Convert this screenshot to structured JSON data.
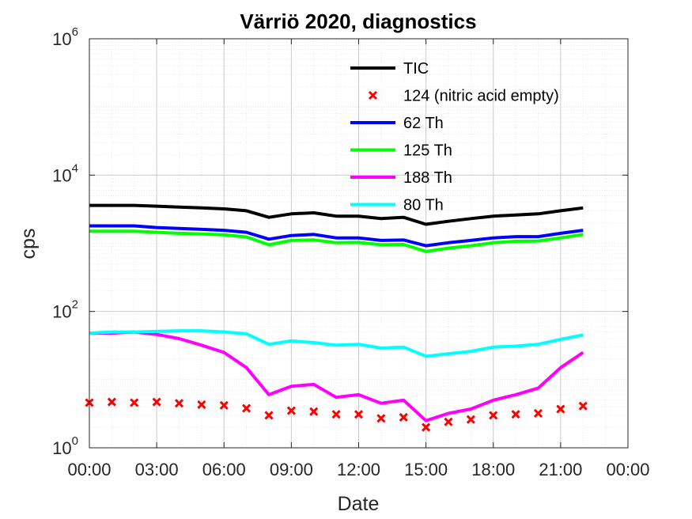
{
  "chart_data": {
    "type": "line",
    "title": "Värriö 2020, diagnostics",
    "xlabel": "Date",
    "ylabel": "cps",
    "yscale": "log",
    "ylim": [
      1,
      1000000
    ],
    "xlim": [
      "00:00",
      "00:00 (next day)"
    ],
    "grid": true,
    "legend_position": "top-right",
    "x_tick_labels": [
      "00:00",
      "03:00",
      "06:00",
      "09:00",
      "12:00",
      "15:00",
      "18:00",
      "21:00",
      "00:00"
    ],
    "y_tick_labels": [
      {
        "base": "10",
        "exp": "0"
      },
      {
        "base": "10",
        "exp": "2"
      },
      {
        "base": "10",
        "exp": "4"
      },
      {
        "base": "10",
        "exp": "6"
      }
    ],
    "x_hours": [
      0,
      1,
      2,
      3,
      4,
      5,
      6,
      7,
      8,
      9,
      10,
      11,
      12,
      13,
      14,
      15,
      16,
      17,
      18,
      19,
      20,
      21,
      22
    ],
    "series": [
      {
        "name": "TIC",
        "style": "line",
        "color": "#000000",
        "values": [
          3600,
          3600,
          3600,
          3500,
          3400,
          3300,
          3200,
          3000,
          2400,
          2700,
          2800,
          2500,
          2500,
          2300,
          2400,
          1900,
          2100,
          2300,
          2500,
          2600,
          2700,
          3000,
          3300
        ]
      },
      {
        "name": "124 (nitric acid empty)",
        "style": "marker",
        "color": "#ff0000",
        "values": [
          4.6,
          4.7,
          4.6,
          4.7,
          4.5,
          4.3,
          4.2,
          3.8,
          3.0,
          3.5,
          3.4,
          3.1,
          3.1,
          2.7,
          2.8,
          2.0,
          2.4,
          2.6,
          3.0,
          3.1,
          3.2,
          3.7,
          4.1
        ]
      },
      {
        "name": "62 Th",
        "style": "line",
        "color": "#0000ff",
        "values": [
          1800,
          1800,
          1800,
          1700,
          1650,
          1600,
          1550,
          1450,
          1150,
          1300,
          1350,
          1200,
          1200,
          1100,
          1120,
          920,
          1020,
          1100,
          1200,
          1250,
          1250,
          1400,
          1550
        ]
      },
      {
        "name": "125 Th",
        "style": "line",
        "color": "#00ff00",
        "values": [
          1500,
          1500,
          1500,
          1450,
          1400,
          1370,
          1330,
          1240,
          950,
          1100,
          1120,
          1020,
          1030,
          950,
          960,
          760,
          850,
          920,
          1020,
          1070,
          1080,
          1200,
          1350
        ]
      },
      {
        "name": "188 Th",
        "style": "line",
        "color": "#ff00ff",
        "values": [
          48,
          48,
          50,
          46,
          40,
          32,
          25,
          15,
          6,
          8,
          8.5,
          5.5,
          6,
          4.5,
          5,
          2.5,
          3.2,
          3.7,
          5,
          6,
          7.5,
          15,
          25
        ]
      },
      {
        "name": "80 Th",
        "style": "line",
        "color": "#00ffff",
        "values": [
          48,
          50,
          50,
          51,
          52,
          52,
          50,
          47,
          33,
          37,
          35,
          32,
          33,
          29,
          30,
          22,
          24,
          26,
          30,
          31,
          33,
          39,
          45
        ]
      }
    ]
  }
}
